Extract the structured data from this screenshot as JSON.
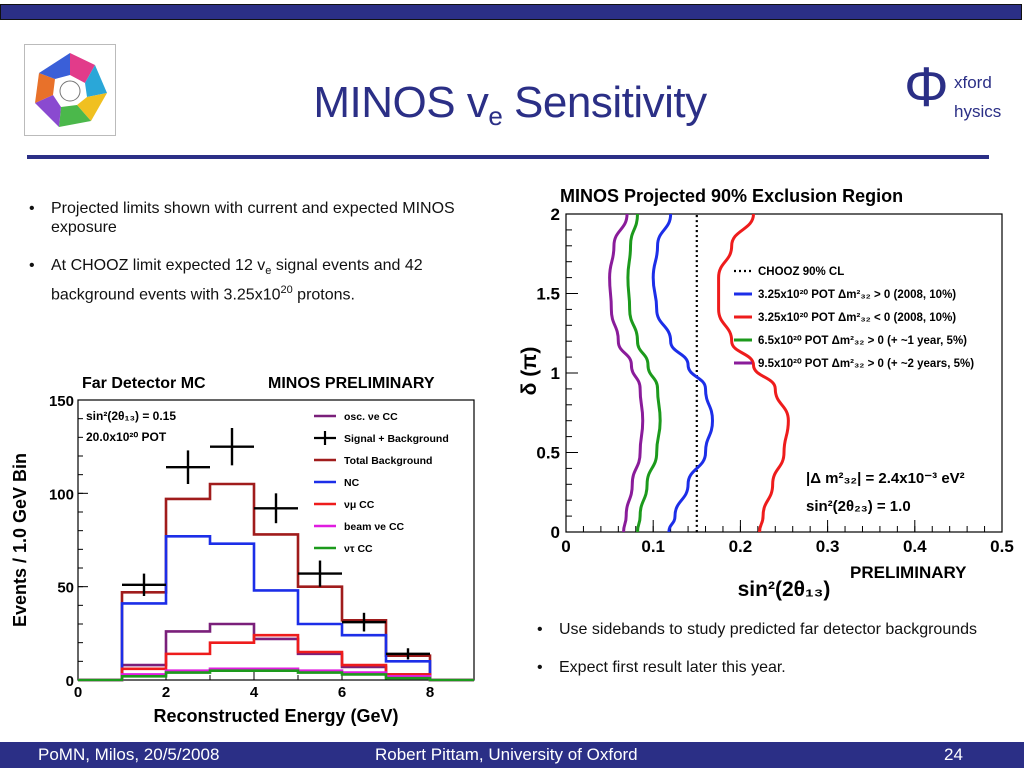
{
  "slide": {
    "title_main": "MINOS v",
    "title_sub": "e",
    "title_rest": " Sensitivity"
  },
  "logo_right": {
    "letter": "Φ",
    "line1": "xford",
    "line2": "hysics"
  },
  "bullets_top": [
    {
      "text": "Projected limits shown with current and expected MINOS exposure"
    },
    {
      "parts": [
        "At CHOOZ limit expected 12 v",
        "e",
        " signal events and 42 background events with 3.25x10",
        "20",
        " protons."
      ]
    }
  ],
  "bullets_bottom": [
    {
      "text": "Use sidebands to study predicted far detector backgrounds"
    },
    {
      "text": "Expect first result later this year."
    }
  ],
  "footer": {
    "left": "PoMN, Milos, 20/5/2008",
    "center": "Robert Pittam, University of Oxford",
    "right": "24"
  },
  "chart_data": [
    {
      "type": "line",
      "title": "Far Detector MC",
      "subtitle": "MINOS PRELIMINARY",
      "xlabel": "Reconstructed Energy (GeV)",
      "ylabel": "Events / 1.0 GeV Bin",
      "xlim": [
        0,
        9
      ],
      "ylim": [
        0,
        150
      ],
      "x_ticks": [
        "0",
        "2",
        "4",
        "6",
        "8"
      ],
      "y_ticks": [
        "0",
        "50",
        "100",
        "150"
      ],
      "annotation_lines": [
        "sin²(2θ₁₃) = 0.15",
        "20.0x10²⁰ POT"
      ],
      "legend_position": "top-right",
      "bin_edges": [
        0,
        1,
        2,
        3,
        4,
        5,
        6,
        7,
        8,
        9
      ],
      "series": [
        {
          "name": "osc. νe CC",
          "color": "#7a1f7a",
          "values": [
            0,
            8,
            26,
            30,
            22,
            14,
            7,
            3,
            0
          ]
        },
        {
          "name": "Total Background",
          "color": "#a01c1c",
          "values": [
            0,
            47,
            97,
            105,
            78,
            50,
            32,
            13,
            0
          ]
        },
        {
          "name": "NC",
          "color": "#1c2ee8",
          "values": [
            0,
            41,
            77,
            73,
            48,
            30,
            24,
            10,
            0
          ]
        },
        {
          "name": "νμ CC",
          "color": "#ee1c1c",
          "values": [
            0,
            6,
            14,
            20,
            24,
            15,
            8,
            3,
            0
          ]
        },
        {
          "name": "beam νe CC",
          "color": "#e01ce0",
          "values": [
            0,
            3,
            5,
            6,
            6,
            5,
            4,
            2,
            0
          ]
        },
        {
          "name": "ντ CC",
          "color": "#1c9a1c",
          "values": [
            0,
            2,
            4,
            5,
            5,
            4,
            3,
            1,
            0
          ]
        }
      ],
      "signal_background": {
        "name": "Signal + Background",
        "color": "#000000",
        "points": [
          {
            "x": 1.5,
            "y": 51,
            "err": 6
          },
          {
            "x": 2.5,
            "y": 114,
            "err": 9
          },
          {
            "x": 3.5,
            "y": 125,
            "err": 10
          },
          {
            "x": 4.5,
            "y": 92,
            "err": 8
          },
          {
            "x": 5.5,
            "y": 57,
            "err": 7
          },
          {
            "x": 6.5,
            "y": 31,
            "err": 5
          },
          {
            "x": 7.5,
            "y": 14,
            "err": 3
          }
        ]
      }
    },
    {
      "type": "line",
      "title": "MINOS Projected 90% Exclusion Region",
      "xlabel": "sin²(2θ₁₃)",
      "ylabel": "δ (π)",
      "corner_label": "PRELIMINARY",
      "xlim": [
        0,
        0.5
      ],
      "ylim": [
        0,
        2
      ],
      "x_ticks": [
        "0",
        "0.1",
        "0.2",
        "0.3",
        "0.4",
        "0.5"
      ],
      "y_ticks": [
        "0",
        "0.5",
        "1",
        "1.5",
        "2"
      ],
      "legend_position": "top-right",
      "annotation_lines": [
        "|Δ m²₃₂| = 2.4x10⁻³ eV²",
        "sin²(2θ₂₃) = 1.0"
      ],
      "series": [
        {
          "name": "CHOOZ 90% CL",
          "color": "#000000",
          "style": "dotted",
          "x": [
            0.15,
            0.15
          ],
          "y": [
            0,
            2
          ]
        },
        {
          "name": "3.25x10²⁰ POT Δm²₃₂ > 0 (2008, 10%)",
          "color": "#1c2ee8",
          "x": [
            0.12,
            0.105,
            0.1,
            0.104,
            0.12,
            0.14,
            0.16,
            0.168,
            0.16,
            0.14,
            0.125,
            0.118
          ],
          "y": [
            2.0,
            1.8,
            1.6,
            1.4,
            1.2,
            1.05,
            0.9,
            0.7,
            0.5,
            0.3,
            0.1,
            0.0
          ]
        },
        {
          "name": "3.25x10²⁰ POT Δm²₃₂ < 0 (2008, 10%)",
          "color": "#ee1c1c",
          "x": [
            0.215,
            0.19,
            0.175,
            0.175,
            0.19,
            0.215,
            0.24,
            0.255,
            0.25,
            0.237,
            0.226,
            0.222
          ],
          "y": [
            2.0,
            1.8,
            1.6,
            1.4,
            1.2,
            1.05,
            0.9,
            0.7,
            0.5,
            0.3,
            0.1,
            0.0
          ]
        },
        {
          "name": "6.5x10²⁰ POT Δm²₃₂ > 0 (+ ~1 year, 5%)",
          "color": "#1c9a1c",
          "x": [
            0.082,
            0.074,
            0.071,
            0.073,
            0.082,
            0.094,
            0.105,
            0.108,
            0.104,
            0.093,
            0.085,
            0.082
          ],
          "y": [
            2.0,
            1.8,
            1.6,
            1.4,
            1.2,
            1.05,
            0.9,
            0.7,
            0.5,
            0.3,
            0.1,
            0.0
          ]
        },
        {
          "name": "9.5x10²⁰ POT Δm²₃₂ > 0 (+ ~2 years, 5%)",
          "color": "#8a1c9a",
          "x": [
            0.07,
            0.055,
            0.05,
            0.052,
            0.06,
            0.075,
            0.085,
            0.088,
            0.085,
            0.076,
            0.069,
            0.066
          ],
          "y": [
            2.0,
            1.8,
            1.6,
            1.4,
            1.2,
            1.05,
            0.9,
            0.7,
            0.5,
            0.3,
            0.1,
            0.0
          ]
        }
      ]
    }
  ]
}
